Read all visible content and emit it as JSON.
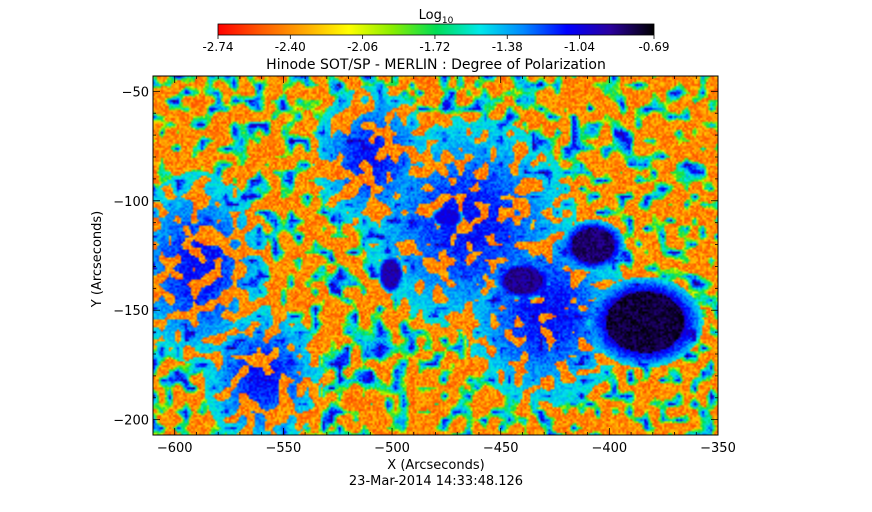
{
  "chart_data": {
    "type": "heatmap",
    "title": "Hinode SOT/SP - MERLIN : Degree of Polarization",
    "xlabel": "X (Arcseconds)",
    "ylabel": "Y (Arcseconds)",
    "footer": "23-Mar-2014 14:33:48.126",
    "colorbar": {
      "label": "Log",
      "label_subscript": "10",
      "range": [
        -2.74,
        -0.69
      ],
      "ticks": [
        "-2.74",
        "-2.40",
        "-2.06",
        "-1.72",
        "-1.38",
        "-1.04",
        "-0.69"
      ],
      "colormap": [
        "#ff0000",
        "#ff5a00",
        "#ffaa00",
        "#ffff00",
        "#88ee00",
        "#00dd55",
        "#00e8e8",
        "#0088ff",
        "#0000ff",
        "#2a009c",
        "#000000"
      ]
    },
    "xlim": [
      -610,
      -350
    ],
    "ylim": [
      -207,
      -43
    ],
    "x_ticks": [
      -600,
      -550,
      -500,
      -450,
      -400,
      -350
    ],
    "y_ticks": [
      -50,
      -100,
      -150,
      -200
    ],
    "features": [
      {
        "x": -384,
        "y": -155,
        "rx": 18,
        "ry": 14,
        "peak": -0.69
      },
      {
        "x": -408,
        "y": -120,
        "rx": 10,
        "ry": 8,
        "peak": -0.75
      },
      {
        "x": -440,
        "y": -136,
        "rx": 9,
        "ry": 6,
        "peak": -0.8
      },
      {
        "x": -501,
        "y": -133,
        "rx": 4,
        "ry": 6,
        "peak": -0.85
      },
      {
        "x": -475,
        "y": -107,
        "rx": 5,
        "ry": 3,
        "peak": -0.95
      }
    ]
  }
}
